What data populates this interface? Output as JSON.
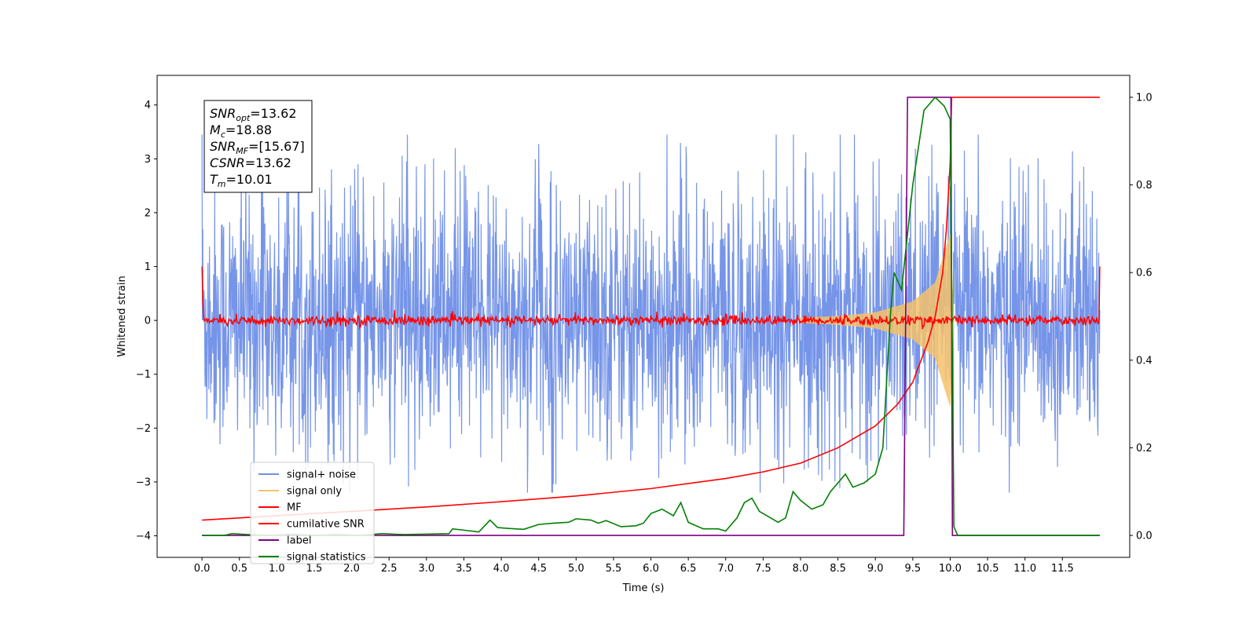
{
  "chart_data": {
    "type": "line",
    "xlabel": "Time (s)",
    "ylabel": "Whitened strain",
    "xlim": [
      -0.6,
      12.4
    ],
    "ylim_left": [
      -4.4,
      4.55
    ],
    "ylim_right": [
      -0.05,
      1.05
    ],
    "x_ticks": [
      "0.0",
      "0.5",
      "1.0",
      "1.5",
      "2.0",
      "2.5",
      "3.0",
      "3.5",
      "4.0",
      "4.5",
      "5.0",
      "5.5",
      "6.0",
      "6.5",
      "7.0",
      "7.5",
      "8.0",
      "8.5",
      "9.0",
      "9.5",
      "10.0",
      "10.5",
      "11.0",
      "11.5"
    ],
    "y_ticks_left": [
      "4",
      "3",
      "2",
      "1",
      "0",
      "−1",
      "−2",
      "−3",
      "−4"
    ],
    "y_ticks_right": [
      "1.0",
      "0.8",
      "0.6",
      "0.4",
      "0.2",
      "0.0"
    ],
    "annotation": [
      {
        "main": "SNR",
        "sub": "opt",
        "rest": "=13.62"
      },
      {
        "main": "M",
        "sub": "c",
        "rest": "=18.88"
      },
      {
        "main": "SNR",
        "sub": "MF",
        "rest": "=[15.67]"
      },
      {
        "main": "CSNR",
        "sub": "",
        "rest": "=13.62"
      },
      {
        "main": "T",
        "sub": "m",
        "rest": "=10.01"
      }
    ],
    "legend": [
      "signal+ noise",
      "signal only",
      "MF",
      "cumilative SNR",
      "label",
      "signal statistics"
    ],
    "legend_position": "lower-left",
    "colors": {
      "signal_noise": "#6f8fe8",
      "signal_only": "#f5c26b",
      "mf": "#ff0000",
      "cumulative_snr": "#ff0000",
      "label": "#800080",
      "signal_statistics": "#008000"
    },
    "series": [
      {
        "name": "signal+ noise",
        "axis": "left",
        "description": "noise band roughly between -2.1 and 2.2 with spikes up to about 3.45 and down to about -3.2",
        "x_range": [
          0.0,
          12.0
        ],
        "band": [
          -2.1,
          2.2
        ],
        "peak_max": 3.45,
        "peak_min": -3.2
      },
      {
        "name": "signal only",
        "axis": "left",
        "x_range": [
          8.0,
          10.05
        ],
        "envelope": [
          [
            8.0,
            0.05
          ],
          [
            8.5,
            0.08
          ],
          [
            9.0,
            0.15
          ],
          [
            9.5,
            0.35
          ],
          [
            9.8,
            0.7
          ],
          [
            10.0,
            1.6
          ],
          [
            10.05,
            0.0
          ]
        ]
      },
      {
        "name": "MF",
        "axis": "left",
        "x_range": [
          0.0,
          12.0
        ],
        "description": "flat near 0 with small fluctuations of about +/-0.12, rising to about 1 at both edges",
        "edge_value": 1.0
      },
      {
        "name": "cumilative SNR",
        "axis": "right",
        "points": [
          [
            0.0,
            0.035
          ],
          [
            1.0,
            0.045
          ],
          [
            2.0,
            0.055
          ],
          [
            3.0,
            0.065
          ],
          [
            4.0,
            0.077
          ],
          [
            5.0,
            0.09
          ],
          [
            6.0,
            0.107
          ],
          [
            7.0,
            0.13
          ],
          [
            7.5,
            0.145
          ],
          [
            8.0,
            0.165
          ],
          [
            8.5,
            0.2
          ],
          [
            9.0,
            0.25
          ],
          [
            9.3,
            0.3
          ],
          [
            9.5,
            0.35
          ],
          [
            9.7,
            0.44
          ],
          [
            9.8,
            0.5
          ],
          [
            9.9,
            0.6
          ],
          [
            9.95,
            0.7
          ],
          [
            10.0,
            0.85
          ],
          [
            10.02,
            1.0
          ],
          [
            12.0,
            1.0
          ]
        ]
      },
      {
        "name": "label",
        "axis": "right",
        "points": [
          [
            0.0,
            0.0
          ],
          [
            9.38,
            0.0
          ],
          [
            9.43,
            1.0
          ],
          [
            10.01,
            1.0
          ],
          [
            10.03,
            0.0
          ],
          [
            12.0,
            0.0
          ]
        ]
      },
      {
        "name": "signal statistics",
        "axis": "right",
        "points": [
          [
            0.0,
            0.0
          ],
          [
            0.3,
            0.0
          ],
          [
            0.4,
            0.004
          ],
          [
            0.6,
            0.002
          ],
          [
            0.9,
            0.0
          ],
          [
            1.2,
            0.003
          ],
          [
            1.5,
            0.0
          ],
          [
            1.8,
            0.002
          ],
          [
            2.1,
            0.0
          ],
          [
            2.4,
            0.004
          ],
          [
            2.7,
            0.002
          ],
          [
            3.0,
            0.003
          ],
          [
            3.3,
            0.004
          ],
          [
            3.35,
            0.015
          ],
          [
            3.5,
            0.012
          ],
          [
            3.7,
            0.008
          ],
          [
            3.85,
            0.035
          ],
          [
            3.95,
            0.018
          ],
          [
            4.1,
            0.016
          ],
          [
            4.3,
            0.014
          ],
          [
            4.5,
            0.025
          ],
          [
            4.7,
            0.028
          ],
          [
            4.9,
            0.03
          ],
          [
            5.0,
            0.038
          ],
          [
            5.2,
            0.035
          ],
          [
            5.3,
            0.028
          ],
          [
            5.4,
            0.034
          ],
          [
            5.6,
            0.02
          ],
          [
            5.8,
            0.022
          ],
          [
            5.9,
            0.028
          ],
          [
            6.0,
            0.05
          ],
          [
            6.15,
            0.06
          ],
          [
            6.3,
            0.045
          ],
          [
            6.4,
            0.075
          ],
          [
            6.5,
            0.03
          ],
          [
            6.7,
            0.015
          ],
          [
            6.9,
            0.015
          ],
          [
            7.0,
            0.01
          ],
          [
            7.15,
            0.04
          ],
          [
            7.25,
            0.075
          ],
          [
            7.35,
            0.085
          ],
          [
            7.45,
            0.055
          ],
          [
            7.7,
            0.03
          ],
          [
            7.8,
            0.04
          ],
          [
            7.9,
            0.1
          ],
          [
            8.0,
            0.08
          ],
          [
            8.15,
            0.06
          ],
          [
            8.3,
            0.07
          ],
          [
            8.4,
            0.1
          ],
          [
            8.6,
            0.14
          ],
          [
            8.7,
            0.11
          ],
          [
            8.85,
            0.12
          ],
          [
            9.0,
            0.14
          ],
          [
            9.1,
            0.2
          ],
          [
            9.2,
            0.5
          ],
          [
            9.25,
            0.6
          ],
          [
            9.35,
            0.56
          ],
          [
            9.5,
            0.8
          ],
          [
            9.65,
            0.97
          ],
          [
            9.8,
            1.0
          ],
          [
            9.92,
            0.98
          ],
          [
            10.0,
            0.95
          ],
          [
            10.05,
            0.02
          ],
          [
            10.1,
            0.0
          ],
          [
            12.0,
            0.0
          ]
        ]
      }
    ]
  }
}
